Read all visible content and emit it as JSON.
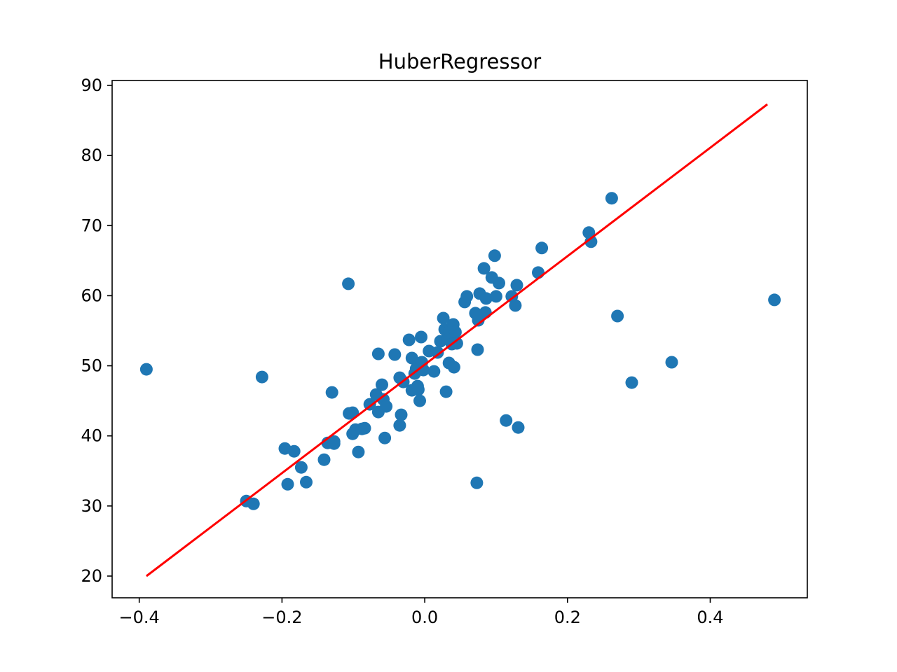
{
  "chart_data": {
    "type": "scatter",
    "title": "HuberRegressor",
    "xlabel": "",
    "ylabel": "",
    "xlim": [
      -0.438,
      0.536
    ],
    "ylim": [
      16.9,
      90.7
    ],
    "grid": false,
    "x_ticks": [
      -0.4,
      -0.2,
      0.0,
      0.2,
      0.4
    ],
    "x_tick_labels": [
      "−0.4",
      "−0.2",
      "0.0",
      "0.2",
      "0.4"
    ],
    "y_ticks": [
      20,
      30,
      40,
      50,
      60,
      70,
      80,
      90
    ],
    "y_tick_labels": [
      "20",
      "30",
      "40",
      "50",
      "60",
      "70",
      "80",
      "90"
    ],
    "series": [
      {
        "kind": "scatter",
        "color": "#1f77b4",
        "points": [
          [
            -0.39,
            49.5
          ],
          [
            -0.228,
            48.4
          ],
          [
            -0.25,
            30.7
          ],
          [
            -0.24,
            30.3
          ],
          [
            -0.196,
            38.2
          ],
          [
            -0.192,
            33.1
          ],
          [
            -0.183,
            37.8
          ],
          [
            -0.173,
            35.5
          ],
          [
            -0.166,
            33.4
          ],
          [
            -0.141,
            36.6
          ],
          [
            -0.136,
            39.0
          ],
          [
            -0.13,
            46.2
          ],
          [
            -0.127,
            39.2
          ],
          [
            -0.127,
            38.9
          ],
          [
            -0.107,
            61.7
          ],
          [
            -0.106,
            43.2
          ],
          [
            -0.101,
            43.3
          ],
          [
            -0.101,
            40.3
          ],
          [
            -0.097,
            40.9
          ],
          [
            -0.093,
            37.7
          ],
          [
            -0.088,
            41.0
          ],
          [
            -0.084,
            41.1
          ],
          [
            -0.077,
            44.5
          ],
          [
            -0.068,
            45.9
          ],
          [
            -0.065,
            51.7
          ],
          [
            -0.065,
            43.4
          ],
          [
            -0.06,
            47.3
          ],
          [
            -0.058,
            45.2
          ],
          [
            -0.056,
            39.7
          ],
          [
            -0.054,
            44.2
          ],
          [
            -0.042,
            51.6
          ],
          [
            -0.035,
            48.3
          ],
          [
            -0.035,
            41.5
          ],
          [
            -0.033,
            43.0
          ],
          [
            -0.03,
            47.7
          ],
          [
            -0.022,
            53.7
          ],
          [
            -0.018,
            46.5
          ],
          [
            -0.018,
            51.1
          ],
          [
            -0.014,
            48.9
          ],
          [
            -0.012,
            49.6
          ],
          [
            -0.01,
            47.1
          ],
          [
            -0.009,
            46.6
          ],
          [
            -0.007,
            45.0
          ],
          [
            -0.005,
            54.1
          ],
          [
            -0.004,
            50.5
          ],
          [
            -0.002,
            49.4
          ],
          [
            0.006,
            52.1
          ],
          [
            0.013,
            49.2
          ],
          [
            0.018,
            51.9
          ],
          [
            0.022,
            53.5
          ],
          [
            0.026,
            56.8
          ],
          [
            0.028,
            55.2
          ],
          [
            0.03,
            46.3
          ],
          [
            0.032,
            53.9
          ],
          [
            0.034,
            50.4
          ],
          [
            0.035,
            55.0
          ],
          [
            0.038,
            53.1
          ],
          [
            0.04,
            55.9
          ],
          [
            0.041,
            49.8
          ],
          [
            0.043,
            54.8
          ],
          [
            0.045,
            53.2
          ],
          [
            0.056,
            59.1
          ],
          [
            0.059,
            59.9
          ],
          [
            0.071,
            57.5
          ],
          [
            0.073,
            33.3
          ],
          [
            0.074,
            52.3
          ],
          [
            0.075,
            56.5
          ],
          [
            0.077,
            60.3
          ],
          [
            0.083,
            63.9
          ],
          [
            0.085,
            57.6
          ],
          [
            0.086,
            59.6
          ],
          [
            0.094,
            62.6
          ],
          [
            0.098,
            65.7
          ],
          [
            0.1,
            59.9
          ],
          [
            0.104,
            61.8
          ],
          [
            0.114,
            42.2
          ],
          [
            0.122,
            59.9
          ],
          [
            0.127,
            58.6
          ],
          [
            0.129,
            61.5
          ],
          [
            0.131,
            41.2
          ],
          [
            0.159,
            63.3
          ],
          [
            0.164,
            66.8
          ],
          [
            0.23,
            69.0
          ],
          [
            0.233,
            67.7
          ],
          [
            0.262,
            73.9
          ],
          [
            0.27,
            57.1
          ],
          [
            0.29,
            47.6
          ],
          [
            0.346,
            50.5
          ],
          [
            0.49,
            59.4
          ]
        ]
      },
      {
        "kind": "line",
        "color": "#ff0000",
        "points": [
          [
            -0.39,
            20.0
          ],
          [
            0.48,
            87.3
          ]
        ]
      }
    ]
  }
}
